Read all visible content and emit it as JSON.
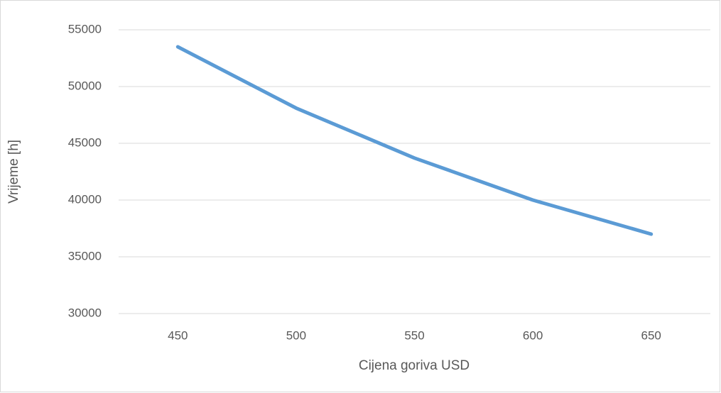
{
  "chart_data": {
    "type": "line",
    "x_label": "Cijena goriva USD",
    "y_label": "Vrijeme [h]",
    "categories": [
      "450",
      "500",
      "550",
      "600",
      "650"
    ],
    "series": [
      {
        "color": "#5b9bd5",
        "values": [
          53500,
          48100,
          43700,
          40000,
          37000
        ]
      }
    ],
    "ylim": [
      30000,
      55000
    ],
    "yticks": [
      30000,
      35000,
      40000,
      45000,
      50000,
      55000
    ],
    "grid": true
  }
}
